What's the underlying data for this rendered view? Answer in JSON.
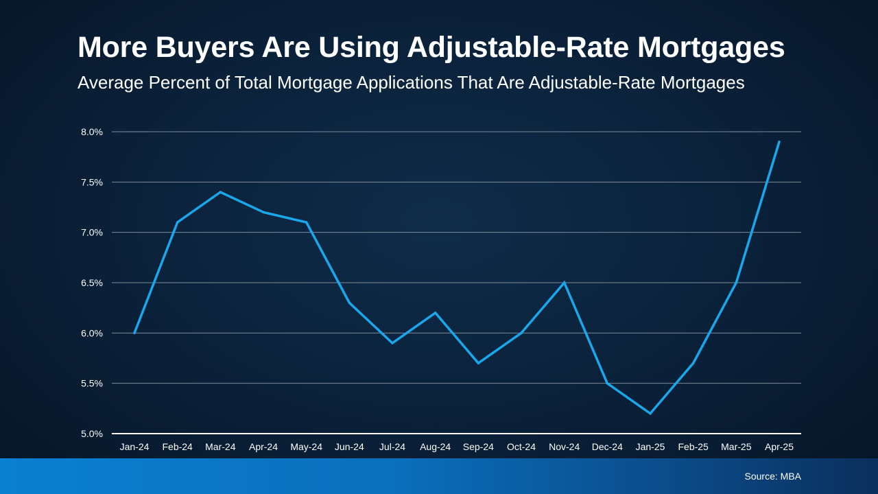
{
  "title": "More Buyers Are Using Adjustable-Rate Mortgages",
  "subtitle": "Average Percent of Total Mortgage Applications That Are Adjustable-Rate Mortgages",
  "source": "Source: MBA",
  "colors": {
    "line": "#1aa7ec",
    "grid": "#7f8b98",
    "axis": "#ffffff",
    "text": "#ffffff"
  },
  "chart_data": {
    "type": "line",
    "title": "More Buyers Are Using Adjustable-Rate Mortgages",
    "subtitle": "Average Percent of Total Mortgage Applications That Are Adjustable-Rate Mortgages",
    "xlabel": "",
    "ylabel": "",
    "categories": [
      "Jan-24",
      "Feb-24",
      "Mar-24",
      "Apr-24",
      "May-24",
      "Jun-24",
      "Jul-24",
      "Aug-24",
      "Sep-24",
      "Oct-24",
      "Nov-24",
      "Dec-24",
      "Jan-25",
      "Feb-25",
      "Mar-25",
      "Apr-25"
    ],
    "series": [
      {
        "values": [
          6.0,
          7.1,
          7.4,
          7.2,
          7.1,
          6.3,
          5.9,
          6.2,
          5.7,
          6.0,
          6.5,
          5.5,
          5.2,
          5.7,
          6.5,
          7.9
        ]
      }
    ],
    "ylim": [
      5.0,
      8.0
    ],
    "yticks": [
      5.0,
      5.5,
      6.0,
      6.5,
      7.0,
      7.5,
      8.0
    ],
    "ytick_labels": [
      "5.0%",
      "5.5%",
      "6.0%",
      "6.5%",
      "7.0%",
      "7.5%",
      "8.0%"
    ],
    "grid": true,
    "legend": "none"
  }
}
